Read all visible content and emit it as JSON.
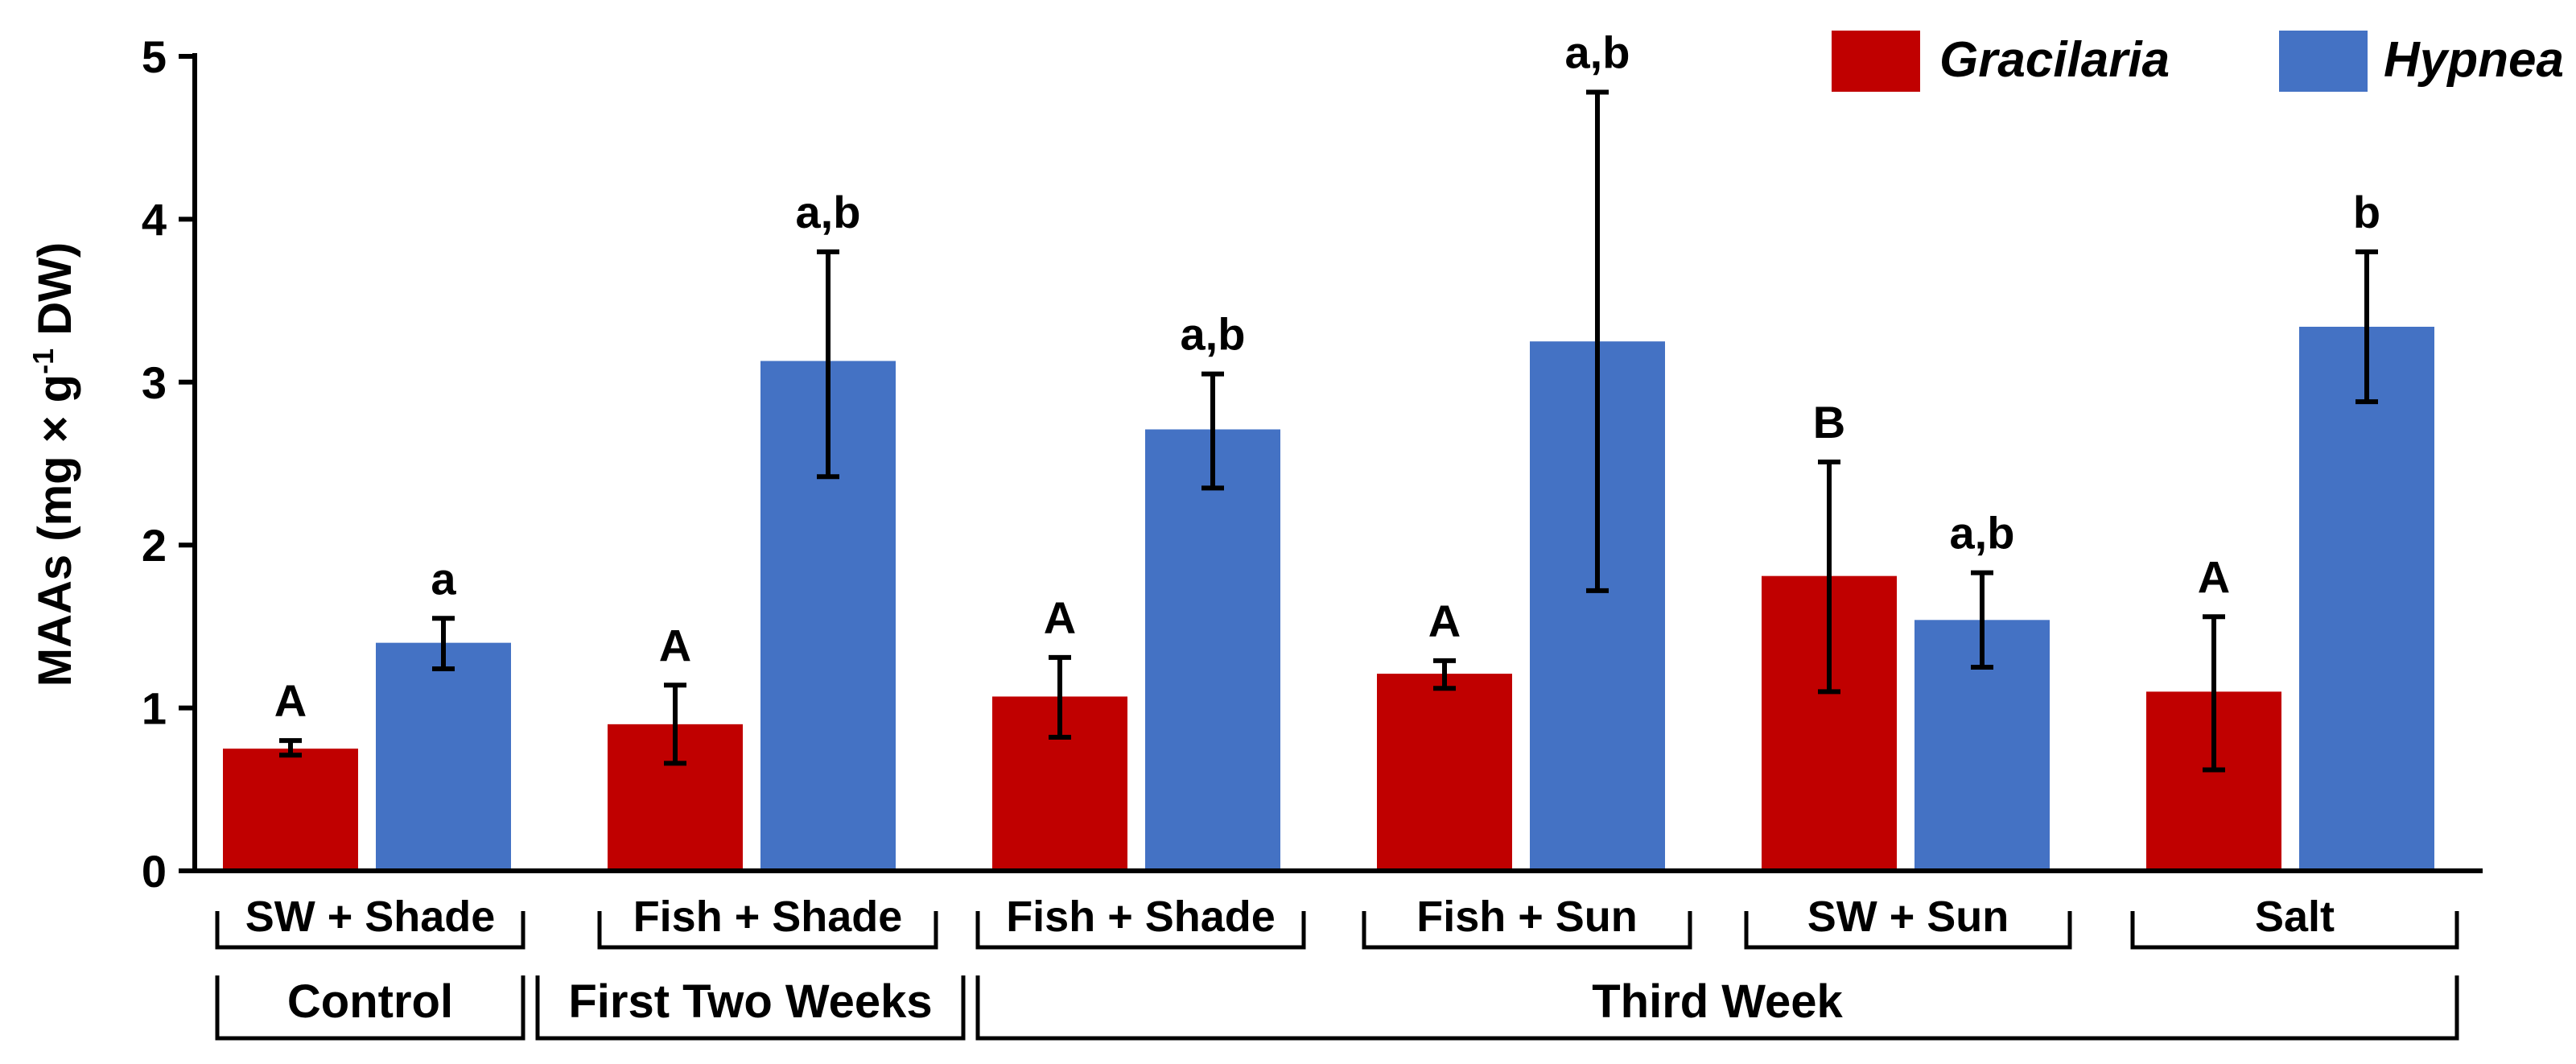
{
  "chart_data": {
    "type": "bar",
    "ylabel": "MAAs (mg × g-1 DW)",
    "ylabel_parts": {
      "before": "MAAs (mg × g",
      "sup": "-1",
      "after": " DW)"
    },
    "ylim": [
      0,
      5
    ],
    "yticks": [
      0,
      1,
      2,
      3,
      4,
      5
    ],
    "grid": false,
    "legend_position": "top-right",
    "categories": [
      "SW + Shade",
      "Fish + Shade",
      "Fish + Shade",
      "Fish + Sun",
      "SW + Sun",
      "Salt"
    ],
    "groups": [
      {
        "label": "Control",
        "span": [
          0,
          0
        ]
      },
      {
        "label": "First Two Weeks",
        "span": [
          1,
          1
        ]
      },
      {
        "label": "Third Week",
        "span": [
          2,
          5
        ]
      }
    ],
    "series": [
      {
        "name": "Gracilaria",
        "color": "#c00000",
        "values": [
          0.75,
          0.9,
          1.07,
          1.21,
          1.81,
          1.1
        ],
        "err_low": [
          0.71,
          0.66,
          0.82,
          1.12,
          1.1,
          0.62
        ],
        "err_high": [
          0.8,
          1.14,
          1.31,
          1.29,
          2.51,
          1.56
        ],
        "labels": [
          "A",
          "A",
          "A",
          "A",
          "B",
          "A"
        ]
      },
      {
        "name": "Hypnea",
        "color": "#4472c4",
        "values": [
          1.4,
          3.13,
          2.71,
          3.25,
          1.54,
          3.34
        ],
        "err_low": [
          1.24,
          2.42,
          2.35,
          1.72,
          1.25,
          2.88
        ],
        "err_high": [
          1.55,
          3.8,
          3.05,
          4.78,
          1.83,
          3.8
        ],
        "labels": [
          "a",
          "a,b",
          "a,b",
          "a,b",
          "a,b",
          "b"
        ]
      }
    ]
  }
}
